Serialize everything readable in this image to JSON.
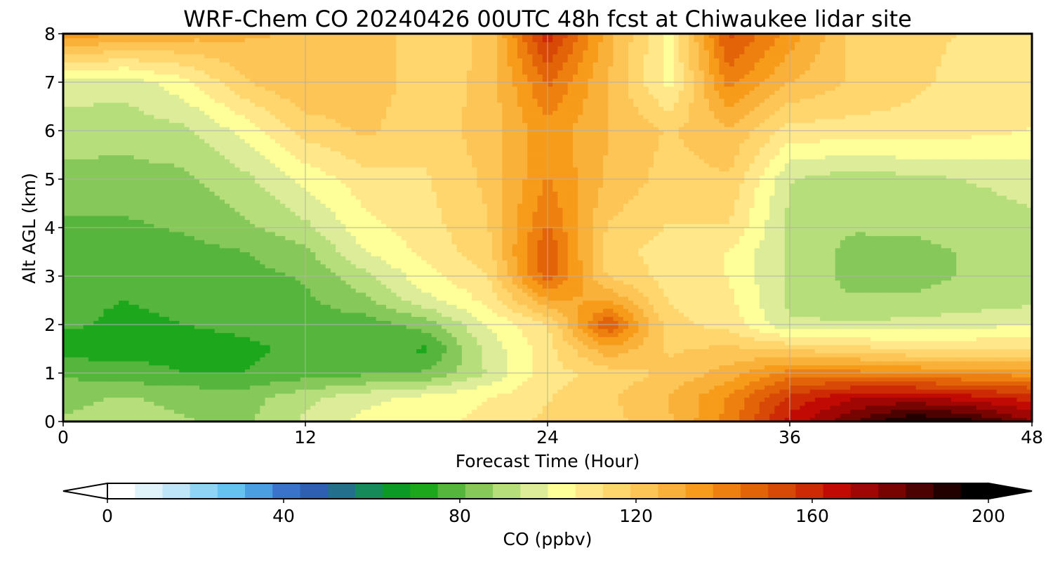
{
  "chart_data": {
    "type": "heatmap",
    "title": "WRF-Chem CO  20240426 00UTC 48h fcst at Chiwaukee lidar site",
    "xlabel": "Forecast Time (Hour)",
    "ylabel": "Alt AGL (km)",
    "xlim": [
      0,
      48
    ],
    "ylim": [
      0,
      8
    ],
    "x_ticks": [
      0,
      12,
      24,
      36,
      48
    ],
    "y_ticks": [
      0,
      1,
      2,
      3,
      4,
      5,
      6,
      7,
      8
    ],
    "grid": true,
    "x": [
      0,
      3,
      6,
      9,
      12,
      15,
      18,
      21,
      24,
      27,
      30,
      33,
      36,
      39,
      42,
      45,
      48
    ],
    "y": [
      0,
      0.5,
      1,
      1.5,
      2,
      2.5,
      3,
      3.5,
      4,
      5,
      6,
      7,
      8
    ],
    "z": [
      [
        88,
        90,
        88,
        86,
        95,
        102,
        104,
        108,
        114,
        116,
        124,
        140,
        165,
        180,
        195,
        190,
        175
      ],
      [
        86,
        88,
        86,
        85,
        92,
        98,
        102,
        106,
        112,
        118,
        125,
        138,
        158,
        168,
        170,
        165,
        160
      ],
      [
        80,
        78,
        75,
        75,
        78,
        80,
        82,
        94,
        110,
        115,
        120,
        128,
        140,
        140,
        138,
        136,
        135
      ],
      [
        72,
        72,
        73,
        74,
        76,
        77,
        74,
        96,
        110,
        130,
        118,
        120,
        118,
        115,
        112,
        112,
        112
      ],
      [
        76,
        74,
        75,
        76,
        78,
        78,
        84,
        100,
        112,
        150,
        115,
        110,
        95,
        95,
        96,
        98,
        100
      ],
      [
        76,
        75,
        76,
        78,
        80,
        86,
        98,
        108,
        130,
        132,
        112,
        108,
        92,
        88,
        88,
        90,
        92
      ],
      [
        77,
        76,
        77,
        79,
        82,
        92,
        104,
        112,
        148,
        118,
        110,
        106,
        92,
        86,
        86,
        88,
        90
      ],
      [
        78,
        77,
        79,
        81,
        86,
        100,
        108,
        116,
        150,
        115,
        110,
        106,
        92,
        86,
        86,
        88,
        90
      ],
      [
        80,
        80,
        82,
        86,
        92,
        104,
        110,
        118,
        145,
        118,
        112,
        112,
        92,
        88,
        88,
        90,
        92
      ],
      [
        86,
        85,
        86,
        92,
        102,
        110,
        112,
        120,
        138,
        124,
        116,
        118,
        94,
        90,
        92,
        94,
        96
      ],
      [
        90,
        90,
        92,
        102,
        115,
        120,
        114,
        122,
        135,
        125,
        118,
        124,
        110,
        110,
        110,
        108,
        106
      ],
      [
        98,
        96,
        104,
        118,
        125,
        122,
        116,
        120,
        145,
        125,
        104,
        140,
        125,
        118,
        114,
        110,
        108
      ],
      [
        136,
        130,
        128,
        126,
        124,
        122,
        115,
        120,
        160,
        128,
        104,
        152,
        135,
        118,
        114,
        112,
        110
      ]
    ],
    "colorbar": {
      "label": "CO  (ppbv)",
      "min": 0,
      "max": 200,
      "ticks": [
        0,
        40,
        80,
        120,
        160,
        200
      ],
      "extend": "both",
      "colors": [
        "#ffffff",
        "#e0f3fb",
        "#bfe6f8",
        "#8fd3f5",
        "#66c2ef",
        "#4b9ee0",
        "#3a73c9",
        "#2e5fb0",
        "#236f8c",
        "#178a5a",
        "#0d9926",
        "#1ca71c",
        "#56b53d",
        "#86c85a",
        "#b6de7a",
        "#ddec98",
        "#ffff99",
        "#ffe78a",
        "#ffd66e",
        "#fcc556",
        "#f9b13a",
        "#f79b1a",
        "#ee8010",
        "#e36408",
        "#d84806",
        "#cd2a05",
        "#c00a03",
        "#a00603",
        "#780402",
        "#4c0201",
        "#230000",
        "#000000"
      ]
    }
  }
}
